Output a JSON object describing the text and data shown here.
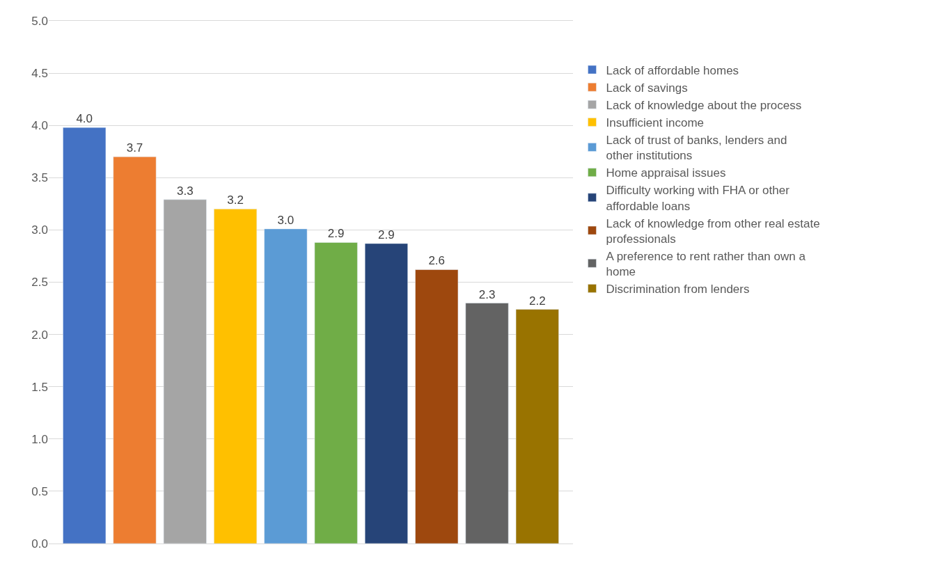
{
  "chart_data": {
    "type": "bar",
    "categories": [
      null
    ],
    "series": [
      {
        "name": "Lack of affordable homes",
        "color": "#4472c4",
        "values": [
          3.98
        ],
        "value_labels": [
          "4.0"
        ]
      },
      {
        "name": "Lack of savings",
        "color": "#ed7d31",
        "values": [
          3.7
        ],
        "value_labels": [
          "3.7"
        ]
      },
      {
        "name": "Lack of knowledge about the process",
        "color": "#a5a5a5",
        "values": [
          3.29
        ],
        "value_labels": [
          "3.3"
        ]
      },
      {
        "name": "Insufficient income",
        "color": "#ffc000",
        "values": [
          3.2
        ],
        "value_labels": [
          "3.2"
        ]
      },
      {
        "name": "Lack of trust of banks, lenders and other institutions",
        "color": "#5b9bd5",
        "values": [
          3.01
        ],
        "value_labels": [
          "3.0"
        ]
      },
      {
        "name": "Home appraisal issues",
        "color": "#70ad47",
        "values": [
          2.88
        ],
        "value_labels": [
          "2.9"
        ]
      },
      {
        "name": "Difficulty working with FHA or other affordable loans",
        "color": "#264478",
        "values": [
          2.87
        ],
        "value_labels": [
          "2.9"
        ]
      },
      {
        "name": "Lack of knowledge from other real estate professionals",
        "color": "#9e480e",
        "values": [
          2.62
        ],
        "value_labels": [
          "2.6"
        ]
      },
      {
        "name": "A preference to rent rather than own a home",
        "color": "#636363",
        "values": [
          2.3
        ],
        "value_labels": [
          "2.3"
        ]
      },
      {
        "name": "Discrimination from lenders",
        "color": "#997300",
        "values": [
          2.24
        ],
        "value_labels": [
          "2.2"
        ]
      }
    ],
    "ylim": [
      0,
      5
    ],
    "yticks": [
      {
        "value": 0,
        "label": "0.0"
      },
      0.5,
      {
        "value": 1,
        "label": "1.0"
      },
      1.5,
      {
        "value": 2,
        "label": "2.0"
      },
      2.5,
      {
        "value": 3,
        "label": "3.0"
      },
      3.5,
      {
        "value": 4,
        "label": "4.0"
      },
      4.5,
      {
        "value": 5,
        "label": "5.0"
      }
    ],
    "grid": "y",
    "legend": "right"
  }
}
